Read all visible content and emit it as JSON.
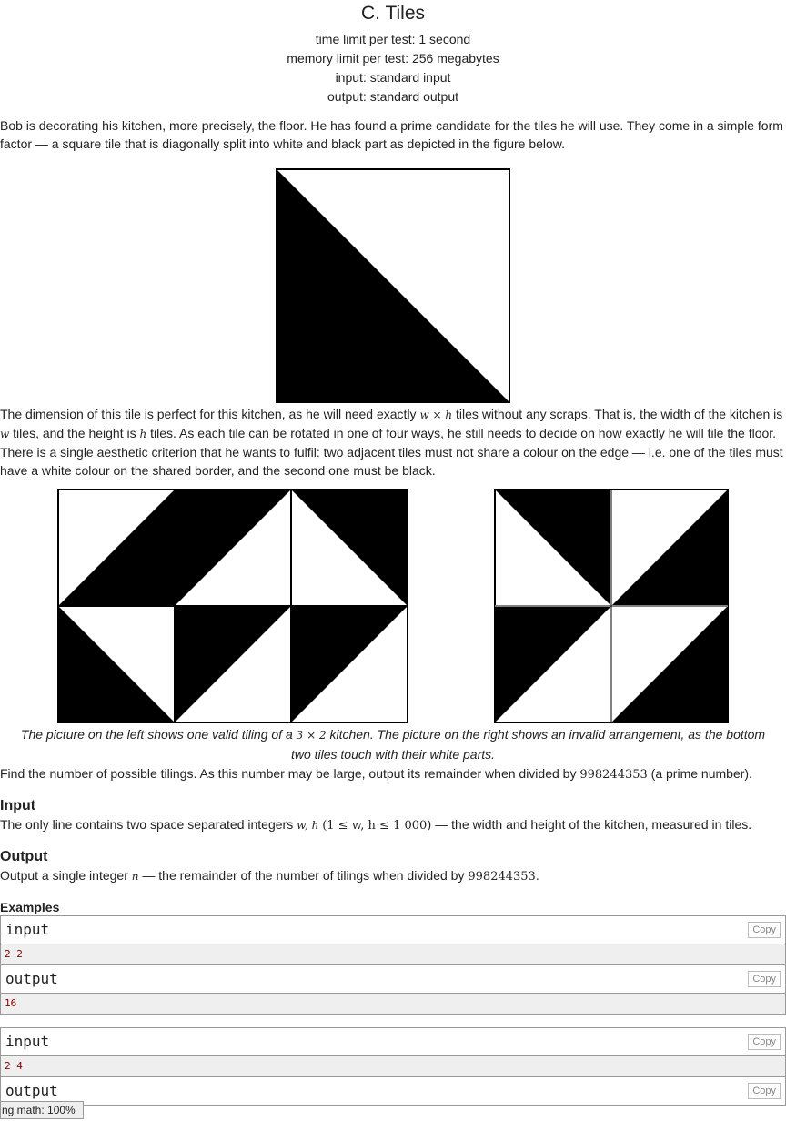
{
  "problem": {
    "title": "C. Tiles",
    "time_limit": "time limit per test: 1 second",
    "memory_limit": "memory limit per test: 256 megabytes",
    "input_file": "input: standard input",
    "output_file": "output: standard output"
  },
  "statement": {
    "p1": "Bob is decorating his kitchen, more precisely, the floor. He has found a prime candidate for the tiles he will use. They come in a simple form factor — a square tile that is diagonally split into white and black part as depicted in the figure below.",
    "p2_a": "The dimension of this tile is perfect for this kitchen, as he will need exactly ",
    "p2_math1": "w × h",
    "p2_b": " tiles without any scraps. That is, the width of the kitchen is ",
    "p2_math2": "w",
    "p2_c": " tiles, and the height is ",
    "p2_math3": "h",
    "p2_d": " tiles. As each tile can be rotated in one of four ways, he still needs to decide on how exactly he will tile the floor. There is a single aesthetic criterion that he wants to fulfil: two adjacent tiles must not share a colour on the edge — i.e. one of the tiles must have a white colour on the shared border, and the second one must be black.",
    "caption_a": "The picture on the left shows one valid tiling of a ",
    "caption_math": "3 × 2",
    "caption_b": " kitchen. The picture on the right shows an invalid arrangement, as the bottom two tiles touch with their white parts.",
    "p3_a": "Find the number of possible tilings. As this number may be large, output its remainder when divided by ",
    "p3_num": "998244353",
    "p3_b": " (a prime number)."
  },
  "input_section": {
    "heading": "Input",
    "text_a": "The only line contains two space separated integers ",
    "math_a": "w, h",
    "math_b": "(1 ≤ w, h ≤ 1 000)",
    "text_b": " — the width and height of the kitchen, measured in tiles."
  },
  "output_section": {
    "heading": "Output",
    "text_a": "Output a single integer ",
    "math_a": "n",
    "text_b": " — the remainder of the number of tilings when divided by ",
    "num": "998244353",
    "text_c": "."
  },
  "examples": {
    "heading": "Examples",
    "copy_label": "Copy",
    "tests": [
      {
        "input_label": "input",
        "input": "2 2",
        "output_label": "output",
        "output": "16"
      },
      {
        "input_label": "input",
        "input": "2 4",
        "output_label": "output",
        "output": ""
      }
    ]
  },
  "status_bar": {
    "text": "ng math: 100%"
  }
}
